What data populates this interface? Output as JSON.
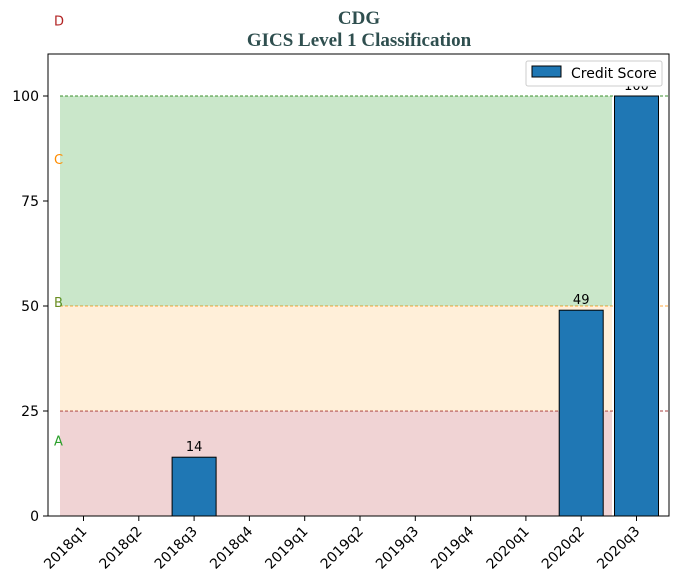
{
  "chart_data": {
    "type": "bar",
    "title": "CDG",
    "subtitle": "GICS Level 1 Classification",
    "categories": [
      "2018q1",
      "2018q2",
      "2018q3",
      "2018q4",
      "2019q1",
      "2019q2",
      "2019q3",
      "2019q4",
      "2020q1",
      "2020q2",
      "2020q3"
    ],
    "series": [
      {
        "name": "Credit Score",
        "values": [
          0,
          0,
          14,
          0,
          0,
          0,
          0,
          0,
          0,
          49,
          100
        ],
        "color": "#1f77b4"
      }
    ],
    "data_labels": [
      null,
      null,
      "14",
      null,
      null,
      null,
      null,
      null,
      null,
      "49",
      "100"
    ],
    "ylim": [
      0,
      110
    ],
    "yticks": [
      0,
      25,
      50,
      75,
      100
    ],
    "xlabel": "",
    "ylabel": "",
    "legend": {
      "position": "top-right",
      "entries": [
        "Credit Score"
      ]
    },
    "grid": false,
    "bands": [
      {
        "label": "A",
        "from": 0,
        "to": 25,
        "fill": "#c44e52",
        "label_color": "#2ca02c",
        "label_y": 18,
        "line_color": "#8b0000"
      },
      {
        "label": "B",
        "from": 25,
        "to": 50,
        "fill": "#ffbf69",
        "label_color": "#6b8e23",
        "label_y": 51,
        "line_color": "#ff8c00"
      },
      {
        "label": "C",
        "from": 50,
        "to": 100,
        "fill": "#2ca02c",
        "label_color": "#ff8c00",
        "label_y": 85,
        "line_color": "#6b8e23"
      },
      {
        "label": "D",
        "from": 100,
        "to": 100,
        "fill": "none",
        "label_color": "#b22222",
        "label_y": 118,
        "line_color": "#228b22"
      }
    ]
  }
}
